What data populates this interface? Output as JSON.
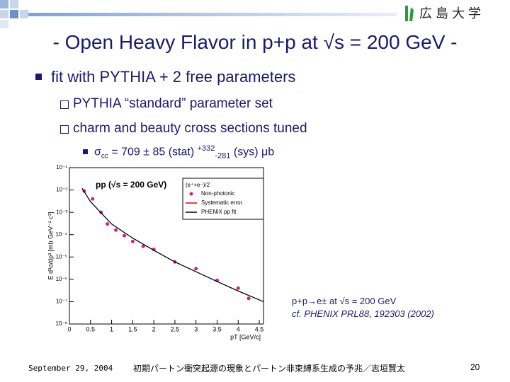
{
  "logo": "広 島 大 学",
  "title": "- Open Heavy Flavor in p+p at √s = 200 GeV -",
  "bullets": [
    "fit with PYTHIA + 2 free parameters"
  ],
  "sub_bullets": [
    "PYTHIA “standard” parameter set",
    "charm and beauty cross sections tuned"
  ],
  "result": {
    "symbol": "σ",
    "sub": "cc",
    "main": " = 709 ± 85 (stat) ",
    "sup": "+332",
    "sub2": "-281",
    "tail": " (sys) μb"
  },
  "annotations": [
    "p+p→e± at √s = 200 GeV",
    "cf. PHENIX PRL88, 192303 (2002)"
  ],
  "footer": {
    "date": "September 29, 2004",
    "subtitle": "初期パートン衝突起源の現象とパートン非束縛系生成の予兆／志垣賢太",
    "page": "20"
  },
  "chart_data": {
    "type": "scatter",
    "title": "pp (√s = 200 GeV)",
    "x_label": "pT [GeV/c]",
    "y_label": "E d³σ/dp³ [mb GeV⁻² c³]",
    "legend_title": "(e⁺+e⁻)/2",
    "legend": [
      "Non-photonic",
      "Systematic error",
      "PHENIX pp fit"
    ],
    "log_y": true,
    "xlim": [
      0,
      4.6
    ],
    "xticks": [
      0,
      0.5,
      1,
      1.5,
      2,
      2.5,
      3,
      3.5,
      4,
      4.5
    ],
    "ylim": [
      1e-08,
      0.1
    ],
    "yticks": [
      {
        "value": 1e-08,
        "label": "10⁻⁸"
      },
      {
        "value": 1e-07,
        "label": "10⁻⁷"
      },
      {
        "value": 1e-06,
        "label": "10⁻⁶"
      },
      {
        "value": 1e-05,
        "label": "10⁻⁵"
      },
      {
        "value": 0.0001,
        "label": "10⁻⁴"
      },
      {
        "value": 0.001,
        "label": "10⁻³"
      },
      {
        "value": 0.01,
        "label": "10⁻²"
      },
      {
        "value": 0.1,
        "label": "10⁻¹"
      }
    ],
    "series": [
      {
        "name": "Non-photonic",
        "color": "#cc2288",
        "x": [
          0.35,
          0.55,
          0.75,
          0.9,
          1.1,
          1.3,
          1.5,
          1.75,
          2.0,
          2.5,
          3.0,
          3.5,
          4.0,
          4.25
        ],
        "values": [
          0.009,
          0.004,
          0.001,
          0.0003,
          0.00016,
          9e-05,
          5e-05,
          3e-05,
          2.2e-05,
          6e-06,
          3e-06,
          9e-07,
          4e-07,
          1.4e-07
        ]
      },
      {
        "name": "PHENIX pp fit",
        "color": "#000000",
        "x": [
          0.3,
          0.5,
          1,
          1.5,
          2,
          2.5,
          3,
          3.5,
          4,
          4.6
        ],
        "values": [
          0.012,
          0.003,
          0.0003,
          7e-05,
          2e-05,
          6e-06,
          2.2e-06,
          8e-07,
          3e-07,
          1e-07
        ]
      }
    ]
  }
}
